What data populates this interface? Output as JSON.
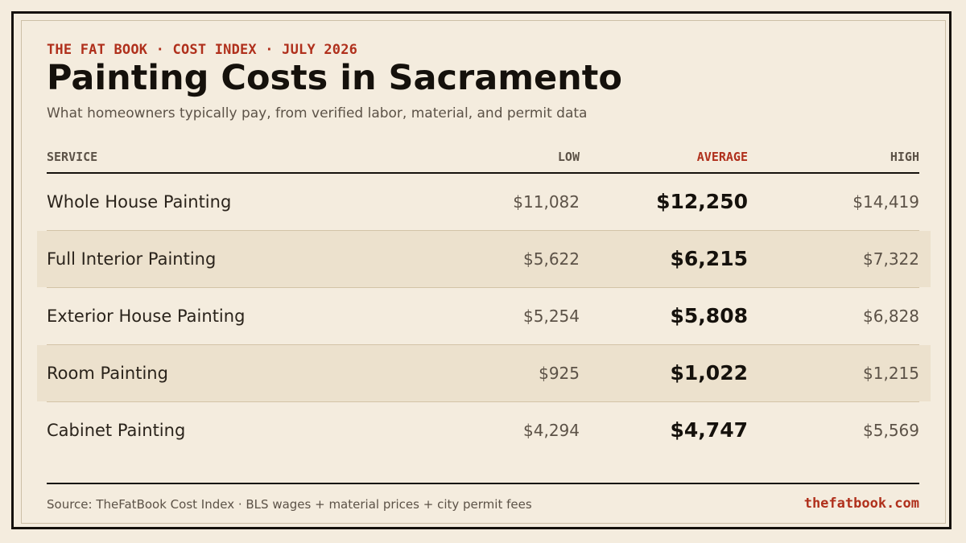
{
  "header": {
    "eyebrow": "THE FAT BOOK · COST INDEX · JULY 2026",
    "title": "Painting Costs in Sacramento",
    "subtitle": "What homeowners typically pay, from verified labor, material, and permit data"
  },
  "table": {
    "columns": {
      "service": "SERVICE",
      "low": "LOW",
      "average": "AVERAGE",
      "high": "HIGH"
    },
    "rows": [
      {
        "service": "Whole House Painting",
        "low": "$11,082",
        "average": "$12,250",
        "high": "$14,419"
      },
      {
        "service": "Full Interior Painting",
        "low": "$5,622",
        "average": "$6,215",
        "high": "$7,322"
      },
      {
        "service": "Exterior House Painting",
        "low": "$5,254",
        "average": "$5,808",
        "high": "$6,828"
      },
      {
        "service": "Room Painting",
        "low": "$925",
        "average": "$1,022",
        "high": "$1,215"
      },
      {
        "service": "Cabinet Painting",
        "low": "$4,294",
        "average": "$4,747",
        "high": "$5,569"
      }
    ]
  },
  "footer": {
    "source": "Source: TheFatBook Cost Index · BLS wages + material prices + city permit fees",
    "site": "thefatbook.com"
  },
  "colors": {
    "background": "#f4ecde",
    "accent": "#b0301c",
    "ink": "#15110c",
    "row_shade": "#ece1cd"
  }
}
